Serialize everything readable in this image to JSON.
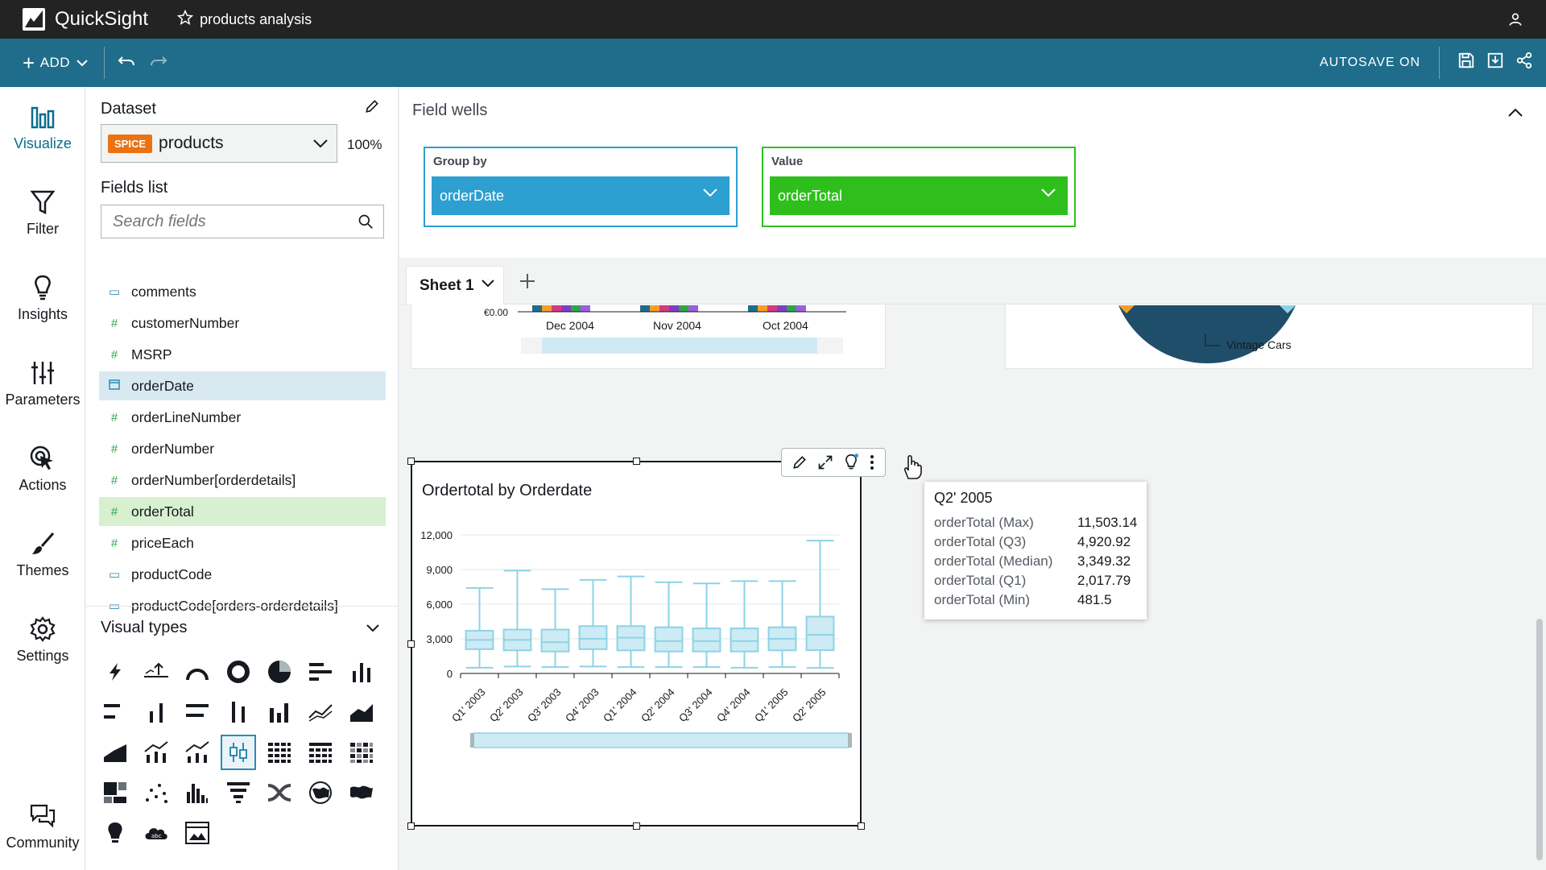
{
  "app": {
    "name": "QuickSight",
    "analysis_name": "products analysis"
  },
  "toolbar": {
    "add_label": "ADD",
    "autosave_label": "AUTOSAVE ON"
  },
  "leftnav": {
    "items": [
      {
        "label": "Visualize",
        "icon": "bar-chart-icon"
      },
      {
        "label": "Filter",
        "icon": "filter-icon"
      },
      {
        "label": "Insights",
        "icon": "lightbulb-icon"
      },
      {
        "label": "Parameters",
        "icon": "sliders-icon"
      },
      {
        "label": "Actions",
        "icon": "cursor-click-icon"
      },
      {
        "label": "Themes",
        "icon": "brush-icon"
      },
      {
        "label": "Settings",
        "icon": "gear-icon"
      },
      {
        "label": "Community",
        "icon": "chat-bubbles-icon"
      }
    ]
  },
  "dataset": {
    "title": "Dataset",
    "badge": "SPICE",
    "name": "products",
    "spice_percent": "100%"
  },
  "fields": {
    "title": "Fields list",
    "search_placeholder": "Search fields",
    "items": [
      {
        "name": "comments",
        "type": "dimension"
      },
      {
        "name": "customerNumber",
        "type": "measure"
      },
      {
        "name": "MSRP",
        "type": "measure"
      },
      {
        "name": "orderDate",
        "type": "date"
      },
      {
        "name": "orderLineNumber",
        "type": "measure"
      },
      {
        "name": "orderNumber",
        "type": "measure"
      },
      {
        "name": "orderNumber[orderdetails]",
        "type": "measure"
      },
      {
        "name": "orderTotal",
        "type": "measure"
      },
      {
        "name": "priceEach",
        "type": "measure"
      },
      {
        "name": "productCode",
        "type": "dimension"
      },
      {
        "name": "productCode[orders-orderdetails]",
        "type": "dimension"
      }
    ]
  },
  "visual_types": {
    "title": "Visual types"
  },
  "field_wells": {
    "title": "Field wells",
    "group_by": {
      "label": "Group by",
      "value": "orderDate"
    },
    "value": {
      "label": "Value",
      "value": "orderTotal"
    }
  },
  "sheet": {
    "tab_label": "Sheet 1"
  },
  "top_visuals": {
    "left_axis_zero": "€0.00",
    "left_ticks": [
      "Dec 2004",
      "Nov 2004",
      "Oct 2004"
    ],
    "right_label": "Vintage Cars"
  },
  "colors": {
    "toolbar": "#1f6d8b",
    "group_by": "#2d9fd0",
    "value": "#2fbf1d",
    "box_fill": "#cdebf4",
    "box_stroke": "#8dd3e6"
  },
  "chart_data": {
    "type": "boxplot",
    "title": "Ordertotal by Orderdate",
    "categories": [
      "Q1' 2003",
      "Q2' 2003",
      "Q3' 2003",
      "Q4' 2003",
      "Q1' 2004",
      "Q2' 2004",
      "Q3' 2004",
      "Q4' 2004",
      "Q1' 2005",
      "Q2' 2005"
    ],
    "series": [
      {
        "values": [
          {
            "min": 500,
            "q1": 2100,
            "median": 2900,
            "q3": 3700,
            "max": 7400
          },
          {
            "min": 600,
            "q1": 2000,
            "median": 2900,
            "q3": 3800,
            "max": 8900
          },
          {
            "min": 550,
            "q1": 1900,
            "median": 2700,
            "q3": 3800,
            "max": 7300
          },
          {
            "min": 600,
            "q1": 2100,
            "median": 3000,
            "q3": 4100,
            "max": 8100
          },
          {
            "min": 550,
            "q1": 2000,
            "median": 3100,
            "q3": 4100,
            "max": 8400
          },
          {
            "min": 550,
            "q1": 1900,
            "median": 2800,
            "q3": 4000,
            "max": 7900
          },
          {
            "min": 550,
            "q1": 1900,
            "median": 2800,
            "q3": 3900,
            "max": 7800
          },
          {
            "min": 500,
            "q1": 1900,
            "median": 2800,
            "q3": 3900,
            "max": 8000
          },
          {
            "min": 550,
            "q1": 2000,
            "median": 3000,
            "q3": 4000,
            "max": 8000
          },
          {
            "min": 481.5,
            "q1": 2017.79,
            "median": 3349.32,
            "q3": 4920.92,
            "max": 11503.14
          }
        ]
      }
    ],
    "y_ticks": [
      "12,000",
      "9,000",
      "6,000",
      "3,000",
      "0"
    ],
    "ylim": [
      0,
      12000
    ]
  },
  "tooltip": {
    "title": "Q2' 2005",
    "rows": [
      {
        "label": "orderTotal (Max)",
        "value": "11,503.14"
      },
      {
        "label": "orderTotal (Q3)",
        "value": "4,920.92"
      },
      {
        "label": "orderTotal (Median)",
        "value": "3,349.32"
      },
      {
        "label": "orderTotal (Q1)",
        "value": "2,017.79"
      },
      {
        "label": "orderTotal (Min)",
        "value": "481.5"
      }
    ]
  }
}
